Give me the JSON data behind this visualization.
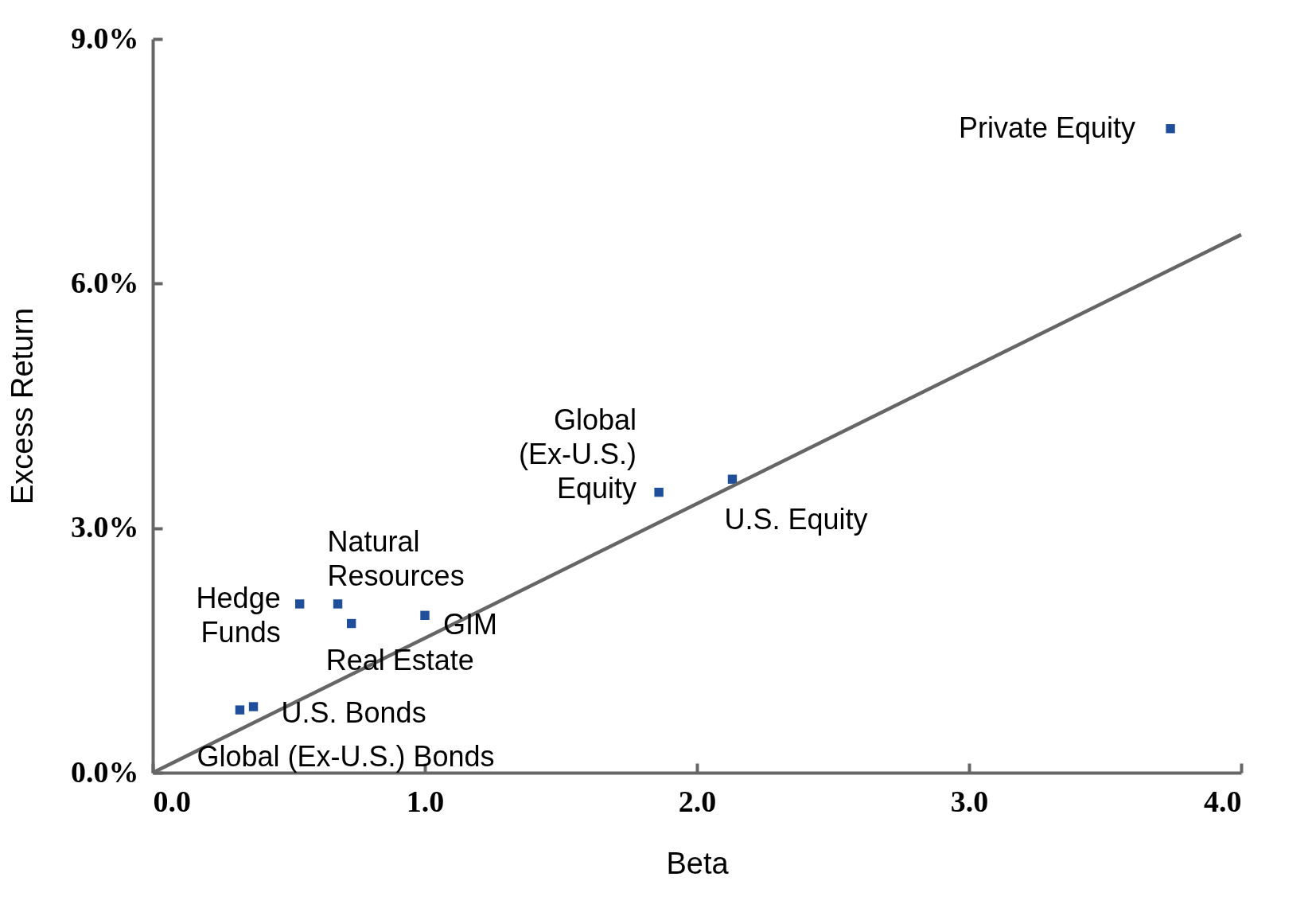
{
  "chart_data": {
    "type": "scatter",
    "xlabel": "Beta",
    "ylabel": "Excess Return",
    "xlim": [
      0,
      4
    ],
    "ylim": [
      0,
      9
    ],
    "xticks": [
      {
        "value": 0,
        "label": "0.0"
      },
      {
        "value": 1,
        "label": "1.0"
      },
      {
        "value": 2,
        "label": "2.0"
      },
      {
        "value": 3,
        "label": "3.0"
      },
      {
        "value": 4,
        "label": "4.0"
      }
    ],
    "yticks": [
      {
        "value": 0,
        "label": "0.0%"
      },
      {
        "value": 3,
        "label": "3.0%"
      },
      {
        "value": 6,
        "label": "6.0%"
      },
      {
        "value": 9,
        "label": "9.0%"
      }
    ],
    "marker": "square",
    "series": [
      {
        "color": "#1f4e9a",
        "x": [
          3.74,
          2.13,
          1.86,
          1.0,
          0.68,
          0.54,
          0.73,
          0.37,
          0.32
        ],
        "values": [
          7.9,
          3.6,
          3.44,
          1.93,
          2.07,
          2.07,
          1.83,
          0.81,
          0.77
        ]
      },
      {
        "type": "line",
        "marker": "none",
        "color": "#666666",
        "x": [
          0,
          4
        ],
        "values": [
          0,
          6.6
        ]
      }
    ],
    "annotations": [
      {
        "text": "Private Equity",
        "x": 3.74,
        "y": 7.9
      },
      {
        "text": "U.S. Equity",
        "x": 2.13,
        "y": 3.6
      },
      {
        "text": "Global\n(Ex-U.S.)\nEquity",
        "x": 1.86,
        "y": 3.44
      },
      {
        "text": "GIM",
        "x": 1.0,
        "y": 1.93
      },
      {
        "text": "Natural\nResources",
        "x": 0.68,
        "y": 2.07
      },
      {
        "text": "Hedge\nFunds",
        "x": 0.54,
        "y": 2.07
      },
      {
        "text": "Real Estate",
        "x": 0.73,
        "y": 1.83
      },
      {
        "text": "U.S. Bonds",
        "x": 0.37,
        "y": 0.81
      },
      {
        "text": "Global (Ex-U.S.) Bonds",
        "x": 0.32,
        "y": 0.77
      }
    ]
  }
}
